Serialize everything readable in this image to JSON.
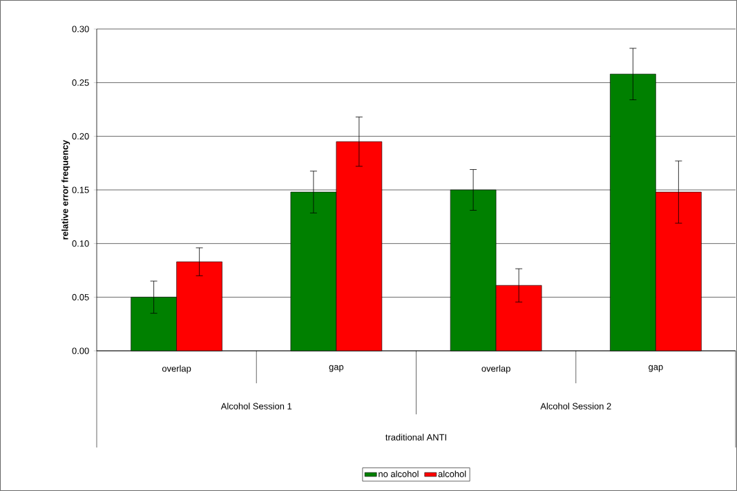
{
  "chart_data": {
    "type": "bar",
    "ylabel": "relative error frequency",
    "categories": [
      "overlap",
      "gap",
      "overlap",
      "gap"
    ],
    "series": [
      {
        "name": "no alcohol",
        "color": "#008000",
        "values": [
          0.05,
          0.148,
          0.15,
          0.258
        ],
        "errors": [
          0.015,
          0.0195,
          0.019,
          0.024
        ]
      },
      {
        "name": "alcohol",
        "color": "#ff0000",
        "values": [
          0.083,
          0.195,
          0.061,
          0.148
        ],
        "errors": [
          0.013,
          0.023,
          0.0155,
          0.029
        ]
      }
    ],
    "ylim": [
      0,
      0.3
    ],
    "yticks": [
      {
        "value": 0,
        "label": "0.00"
      },
      {
        "value": 0.05,
        "label": "0.05"
      },
      {
        "value": 0.1,
        "label": "0.10"
      },
      {
        "value": 0.15,
        "label": "0.15"
      },
      {
        "value": 0.2,
        "label": "0.20"
      },
      {
        "value": 0.25,
        "label": "0.25"
      },
      {
        "value": 0.3,
        "label": "0.30"
      }
    ],
    "grid": "y",
    "legend": "bottom",
    "annotations": [
      "Alcohol Session 1",
      "Alcohol Session 2",
      "traditional ANTI"
    ]
  }
}
